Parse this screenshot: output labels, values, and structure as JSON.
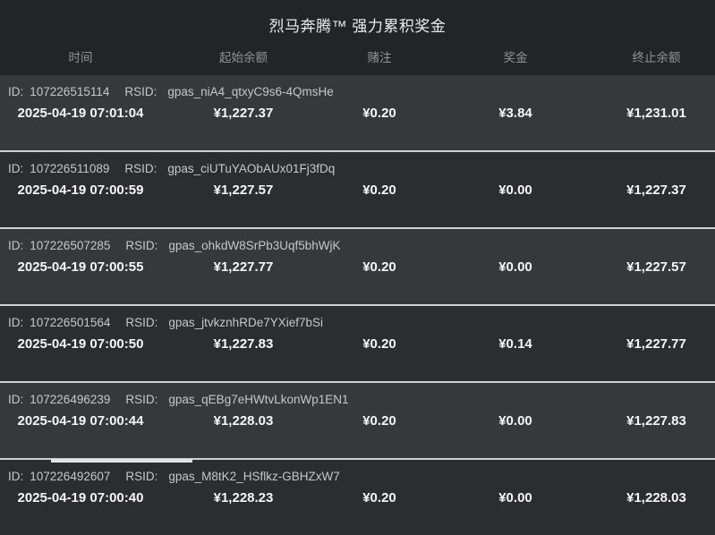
{
  "header": {
    "title": "烈马奔腾™ 强力累积奖金",
    "columns": {
      "time": "时间",
      "start_balance": "起始余额",
      "bet": "赌注",
      "win": "奖金",
      "end_balance": "终止余额"
    }
  },
  "labels": {
    "id": "ID:",
    "rsid": "RSID:"
  },
  "colors": {
    "page_bg": "#222527",
    "row_light": "#35393c",
    "row_dark": "#2b2e31",
    "divider": "#ccd1d4",
    "value_text": "#f4f6f7",
    "muted_text": "#8f9396"
  },
  "rows": [
    {
      "id": "107226515114",
      "rsid": "gpas_niA4_qtxyC9s6-4QmsHe",
      "time": "2025-04-19 07:01:04",
      "start_balance": "¥1,227.37",
      "bet": "¥0.20",
      "win": "¥3.84",
      "end_balance": "¥1,231.01"
    },
    {
      "id": "107226511089",
      "rsid": "gpas_ciUTuYAObAUx01Fj3fDq",
      "time": "2025-04-19 07:00:59",
      "start_balance": "¥1,227.57",
      "bet": "¥0.20",
      "win": "¥0.00",
      "end_balance": "¥1,227.37"
    },
    {
      "id": "107226507285",
      "rsid": "gpas_ohkdW8SrPb3Uqf5bhWjK",
      "time": "2025-04-19 07:00:55",
      "start_balance": "¥1,227.77",
      "bet": "¥0.20",
      "win": "¥0.00",
      "end_balance": "¥1,227.57"
    },
    {
      "id": "107226501564",
      "rsid": "gpas_jtvkznhRDe7YXief7bSi",
      "time": "2025-04-19 07:00:50",
      "start_balance": "¥1,227.83",
      "bet": "¥0.20",
      "win": "¥0.14",
      "end_balance": "¥1,227.77"
    },
    {
      "id": "107226496239",
      "rsid": "gpas_qEBg7eHWtvLkonWp1EN1",
      "time": "2025-04-19 07:00:44",
      "start_balance": "¥1,228.03",
      "bet": "¥0.20",
      "win": "¥0.00",
      "end_balance": "¥1,227.83"
    },
    {
      "id": "107226492607",
      "rsid": "gpas_M8tK2_HSflkz-GBHZxW7",
      "time": "2025-04-19 07:00:40",
      "start_balance": "¥1,228.23",
      "bet": "¥0.20",
      "win": "¥0.00",
      "end_balance": "¥1,228.03"
    }
  ]
}
